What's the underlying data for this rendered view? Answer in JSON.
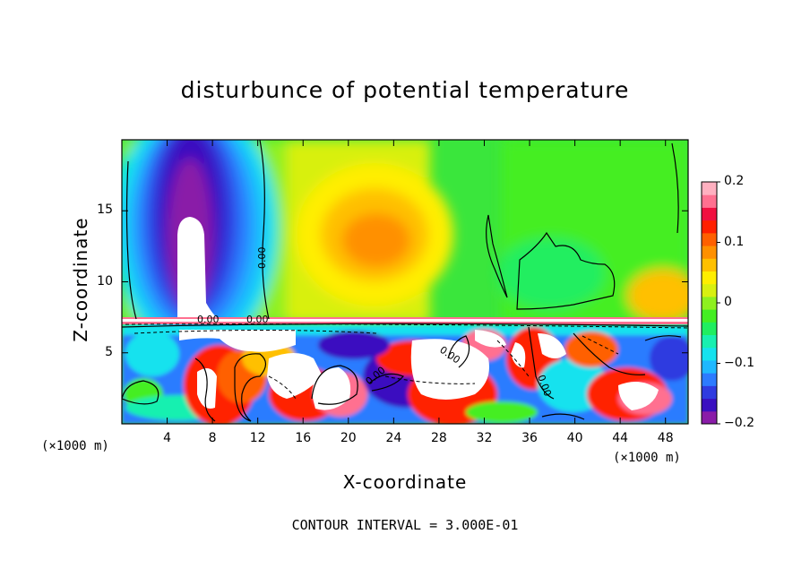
{
  "chart_data": {
    "type": "heatmap",
    "title": "disturbunce of potential temperature",
    "xlabel": "X-coordinate",
    "ylabel": "Z-coordinate",
    "x_unit": "(×1000 m)",
    "x_ticks": [
      "4",
      "8",
      "12",
      "16",
      "20",
      "24",
      "28",
      "32",
      "36",
      "40",
      "44",
      "48"
    ],
    "y_ticks": [
      "5",
      "10",
      "15"
    ],
    "xlim": [
      0,
      50
    ],
    "ylim": [
      0,
      20
    ],
    "colorbar": {
      "min": -0.2,
      "max": 0.2,
      "ticks": [
        "0.2",
        "0.1",
        "0",
        "−0.1",
        "−0.2"
      ],
      "colors": [
        "#8a1ca8",
        "#3a10c0",
        "#2f3be0",
        "#2c7bff",
        "#1fb8ff",
        "#15e2ee",
        "#18f0b0",
        "#20ee60",
        "#44ee22",
        "#8ef020",
        "#d8f010",
        "#ffee00",
        "#ffc000",
        "#ff9000",
        "#ff6000",
        "#ff2000",
        "#f01040",
        "#ff7090",
        "#ffb0c0"
      ]
    },
    "contour_interval": "CONTOUR INTERVAL = 3.000E-01",
    "contour_labels": [
      "0.00",
      "0.00",
      "0.00",
      "0.00",
      "0.00",
      "0.00"
    ]
  }
}
